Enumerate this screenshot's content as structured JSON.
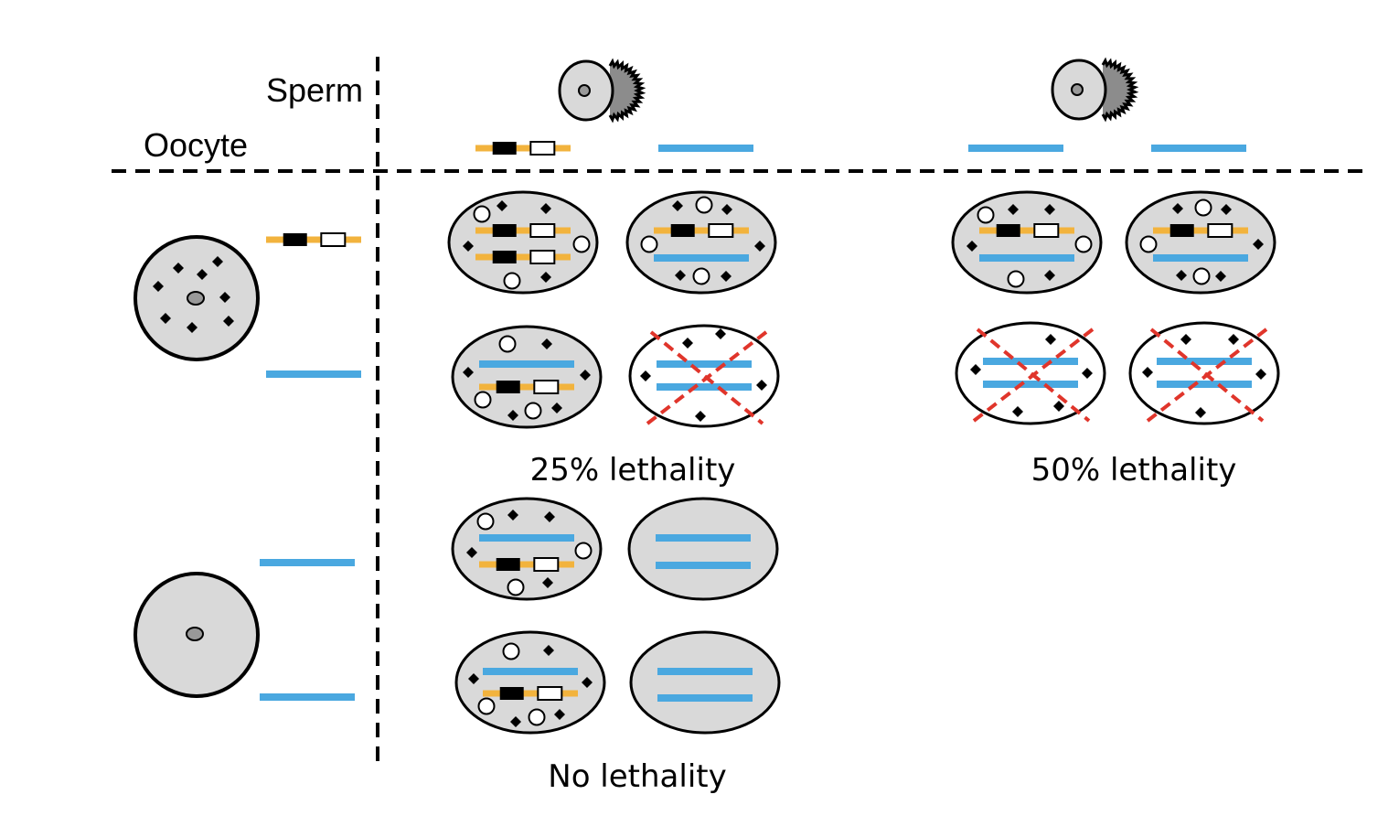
{
  "header": {
    "sperm_label": "Sperm",
    "oocyte_label": "Oocyte"
  },
  "outcomes": {
    "lethality_25": "25% lethality",
    "lethality_50": "50% lethality",
    "no_lethality": "No lethality"
  },
  "colors": {
    "cell_fill": "#d9d9d9",
    "chromosome_blue": "#4aa8e0",
    "chromosome_orange": "#f2b33d",
    "cross_red": "#e0352b",
    "black": "#000000"
  },
  "icons": {
    "sperm": "sperm-icon",
    "oocyte": "oocyte-icon",
    "embryo": "embryo-icon",
    "dead_embryo": "red-x-icon",
    "toxin": "black-diamond-icon",
    "antidote": "white-circle-icon",
    "element": "toxin-antidote-element-icon"
  }
}
